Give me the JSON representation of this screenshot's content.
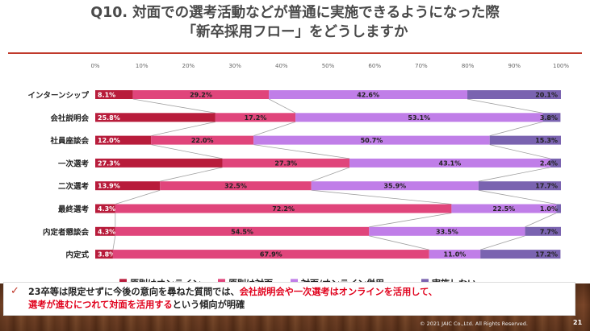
{
  "title_line1": "Q10. 対面での選考活動などが普通に実施できるようになった際",
  "title_line2": "「新卒採用フロー」をどうしますか",
  "note": {
    "p1": "23卒等は限定せずに今後の意向を尋ねた質問では、",
    "red1": "会社説明会や一次選考はオンラインを活用して、",
    "red2": "選考が進むにつれて対面を活用する",
    "p2": "という傾向が明確"
  },
  "copyright": "© 2021 JAIC Co.,Ltd. All Rights Reserved.",
  "page_number": "21",
  "chart_data": {
    "type": "bar",
    "orientation": "horizontal-stacked-100",
    "categories": [
      "インターンシップ",
      "会社説明会",
      "社員座談会",
      "一次選考",
      "二次選考",
      "最終選考",
      "内定者懇談会",
      "内定式"
    ],
    "series": [
      {
        "name": "原則はオンライン",
        "color": "#b81c3b",
        "values": [
          8.1,
          25.8,
          12.0,
          27.3,
          13.9,
          4.3,
          4.3,
          3.8
        ]
      },
      {
        "name": "原則は対面",
        "color": "#e0457b",
        "values": [
          29.2,
          17.2,
          22.0,
          27.3,
          32.5,
          72.2,
          54.5,
          67.9
        ]
      },
      {
        "name": "対面/オンライン併用",
        "color": "#c07ee8",
        "values": [
          42.6,
          53.1,
          50.7,
          43.1,
          35.9,
          22.5,
          33.5,
          11.0
        ]
      },
      {
        "name": "実施しない",
        "color": "#7a63b0",
        "values": [
          20.1,
          3.8,
          15.3,
          2.4,
          17.7,
          1.0,
          7.7,
          17.2
        ]
      }
    ],
    "labels": [
      [
        "8.1%",
        "29.2%",
        "42.6%",
        "20.1%"
      ],
      [
        "25.8%",
        "17.2%",
        "53.1%",
        "3.8%"
      ],
      [
        "12.0%",
        "22.0%",
        "50.7%",
        "15.3%"
      ],
      [
        "27.3%",
        "27.3%",
        "43.1%",
        "2.4%"
      ],
      [
        "13.9%",
        "32.5%",
        "35.9%",
        "17.7%"
      ],
      [
        "4.3%",
        "72.2%",
        "22.5%",
        "1.0%"
      ],
      [
        "4.3%",
        "54.5%",
        "33.5%",
        "7.7%"
      ],
      [
        "3.8%",
        "67.9%",
        "11.0%",
        "17.2%"
      ]
    ],
    "xticks": [
      "0%",
      "10%",
      "20%",
      "30%",
      "40%",
      "50%",
      "60%",
      "70%",
      "80%",
      "90%",
      "100%"
    ],
    "xlim": [
      0,
      100
    ],
    "legend_position": "bottom",
    "connector_lines": true
  }
}
